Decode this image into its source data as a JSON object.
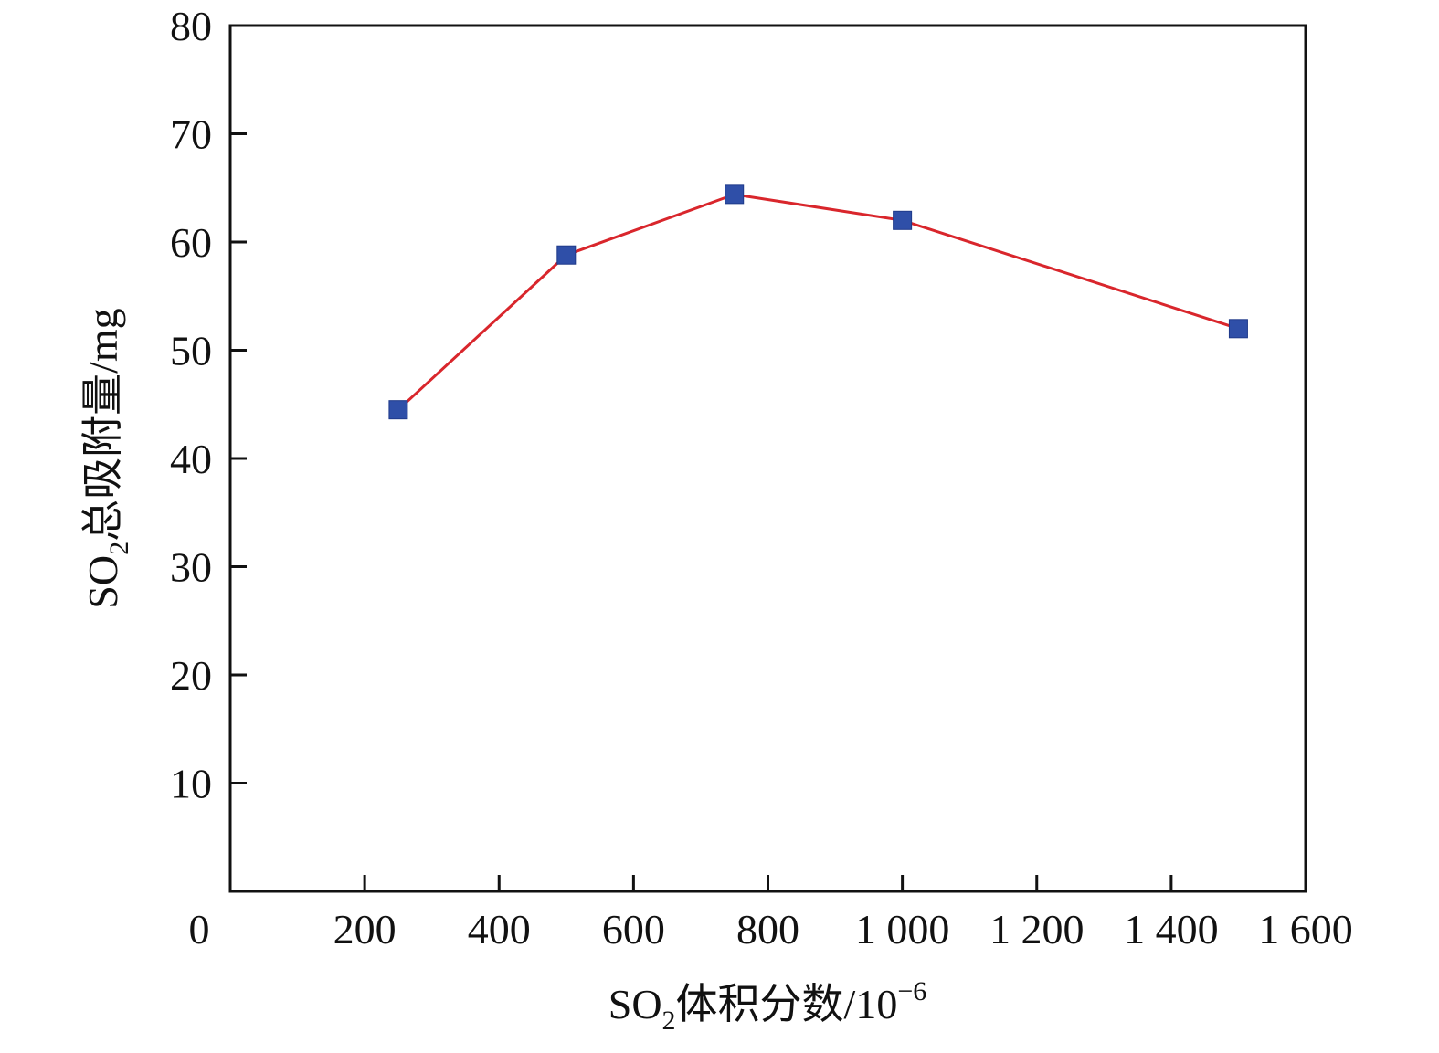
{
  "chart_data": {
    "type": "line",
    "xlabel": {
      "prefix": "SO",
      "subscript": "2",
      "text": "体积分数/10",
      "superscript": "−6"
    },
    "ylabel": {
      "prefix": "SO",
      "subscript": "2",
      "text": "总吸附量/mg"
    },
    "xlim": [
      0,
      1600
    ],
    "ylim": [
      0,
      80
    ],
    "x_ticks": [
      {
        "value": 0,
        "label": "0"
      },
      {
        "value": 200,
        "label": "200"
      },
      {
        "value": 400,
        "label": "400"
      },
      {
        "value": 600,
        "label": "600"
      },
      {
        "value": 800,
        "label": "800"
      },
      {
        "value": 1000,
        "label": "1 000"
      },
      {
        "value": 1200,
        "label": "1 200"
      },
      {
        "value": 1400,
        "label": "1 400"
      },
      {
        "value": 1600,
        "label": "1 600"
      }
    ],
    "y_ticks": [
      {
        "value": 10,
        "label": "10"
      },
      {
        "value": 20,
        "label": "20"
      },
      {
        "value": 30,
        "label": "30"
      },
      {
        "value": 40,
        "label": "40"
      },
      {
        "value": 50,
        "label": "50"
      },
      {
        "value": 60,
        "label": "60"
      },
      {
        "value": 70,
        "label": "70"
      },
      {
        "value": 80,
        "label": "80"
      }
    ],
    "grid": false,
    "legend": "none",
    "series": [
      {
        "line_color": "#d9262c",
        "marker_color": "#2f4fa8",
        "marker": "square",
        "points": [
          {
            "x": 250,
            "y": 44.5
          },
          {
            "x": 500,
            "y": 58.8
          },
          {
            "x": 750,
            "y": 64.4
          },
          {
            "x": 1000,
            "y": 62.0
          },
          {
            "x": 1500,
            "y": 52.0
          }
        ]
      }
    ]
  }
}
